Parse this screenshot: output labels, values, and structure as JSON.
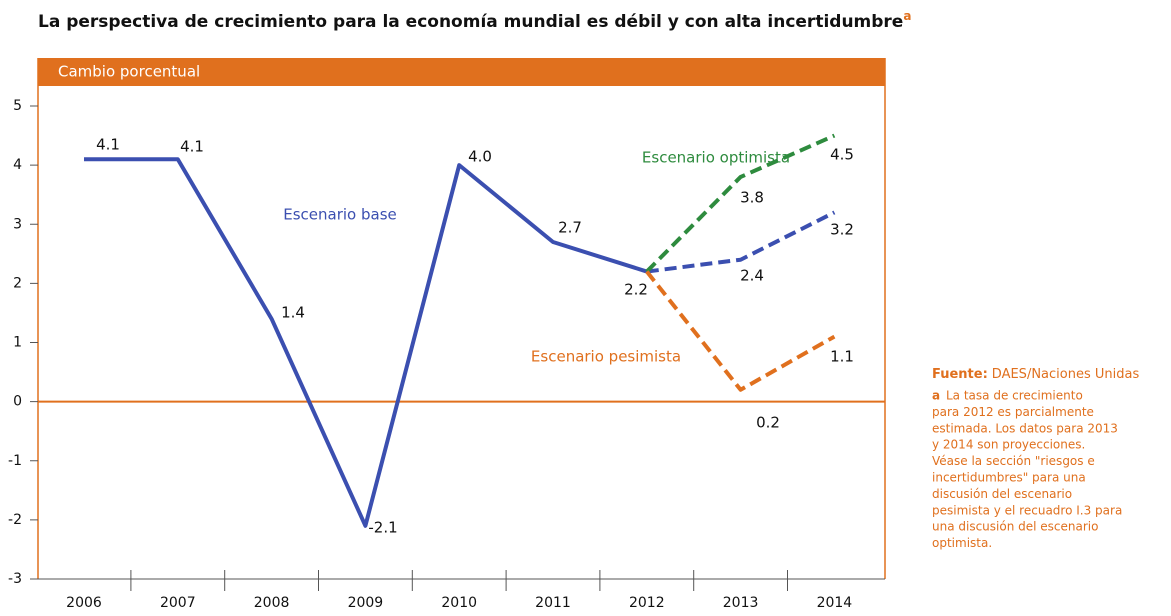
{
  "chart_data": {
    "type": "line",
    "title": "La perspectiva de crecimiento para la economía mundial es débil y con alta incertidumbre",
    "title_marker": "a",
    "ylabel": "Cambio porcentual",
    "categories": [
      "2006",
      "2007",
      "2008",
      "2009",
      "2010",
      "2011",
      "2012",
      "2013",
      "2014"
    ],
    "projected_from": "2012",
    "series": [
      {
        "name": "Escenario base",
        "color": "#3b4fb0",
        "values": [
          4.1,
          4.1,
          1.4,
          -2.1,
          4.0,
          2.7,
          2.2,
          2.4,
          3.2
        ],
        "value_labels": [
          "4.1",
          "4.1",
          "1.4",
          "-2.1",
          "4.0",
          "2.7",
          "2.2",
          "2.4",
          "3.2"
        ]
      },
      {
        "name": "Escenario optimista",
        "color": "#2e8b3e",
        "values": [
          null,
          null,
          null,
          null,
          null,
          null,
          2.2,
          3.8,
          4.5
        ],
        "value_labels": [
          null,
          null,
          null,
          null,
          null,
          null,
          null,
          "3.8",
          "4.5"
        ]
      },
      {
        "name": "Escenario pesimista",
        "color": "#e0701e",
        "values": [
          null,
          null,
          null,
          null,
          null,
          null,
          2.2,
          0.2,
          1.1
        ],
        "value_labels": [
          null,
          null,
          null,
          null,
          null,
          null,
          null,
          "0.2",
          "1.1"
        ]
      }
    ],
    "ylim": [
      -3,
      5
    ],
    "yticks": [
      5,
      4,
      3,
      2,
      1,
      0,
      -1,
      -2,
      -3
    ],
    "frame_color": "#e0701e",
    "source_label": "Fuente:",
    "source": "DAES/Naciones Unidas",
    "note_marker": "a",
    "note": [
      "La tasa de crecimiento",
      "para 2012 es parcialmente",
      "estimada. Los datos para 2013",
      "y 2014 son proyecciones.",
      "Véase la sección \"riesgos e",
      "incertidumbres\" para una",
      "discusión del escenario",
      "pesimista y el recuadro I.3 para",
      "una discusión del escenario",
      "optimista."
    ]
  }
}
